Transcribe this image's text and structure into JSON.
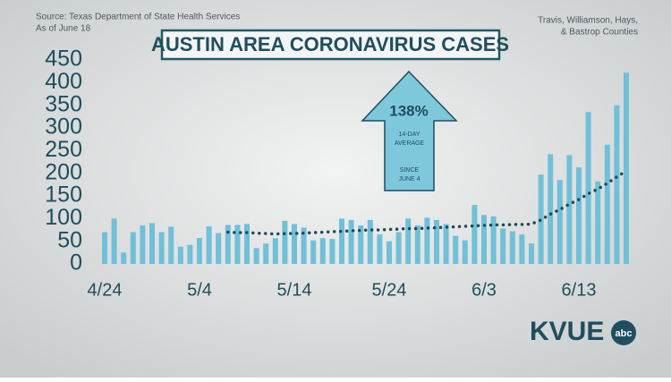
{
  "chart_data": {
    "type": "bar",
    "title": "AUSTIN AREA CORONAVIRUS CASES",
    "source": "Source: Texas Department of State Health Services",
    "date_note": "As of June 18",
    "region": "Travis, Williamson, Hays,",
    "region_2": "& Bastrop Counties",
    "annotation_value": "138%",
    "annotation_metric": "14-DAY AVERAGE",
    "annotation_since": "SINCE JUNE 4",
    "logo": "KVUE",
    "logo_badge": "abc",
    "categories": [
      "4/24",
      null,
      null,
      null,
      null,
      null,
      null,
      null,
      null,
      null,
      "5/4",
      null,
      null,
      null,
      null,
      null,
      null,
      null,
      null,
      null,
      "5/14",
      null,
      null,
      null,
      null,
      null,
      null,
      null,
      null,
      null,
      "5/24",
      null,
      null,
      null,
      null,
      null,
      null,
      null,
      null,
      null,
      "6/3",
      null,
      null,
      null,
      null,
      null,
      null,
      null,
      null,
      null,
      "6/13",
      null,
      null,
      null,
      null,
      null
    ],
    "series": [
      {
        "type": "bar",
        "color": "#6fc0d8",
        "values": [
          70,
          100,
          25,
          70,
          85,
          90,
          70,
          82,
          38,
          42,
          57,
          83,
          68,
          86,
          86,
          88,
          35,
          45,
          57,
          95,
          88,
          80,
          52,
          57,
          55,
          100,
          97,
          85,
          97,
          65,
          50,
          70,
          100,
          85,
          102,
          97,
          88,
          62,
          52,
          130,
          108,
          105,
          78,
          72,
          65,
          45,
          197,
          242,
          185,
          240,
          213,
          335,
          182,
          263,
          350,
          422
        ]
      },
      {
        "type": "line",
        "color": "#1d4a5a",
        "values": [
          null,
          null,
          null,
          null,
          null,
          null,
          null,
          null,
          null,
          null,
          null,
          null,
          null,
          70,
          69,
          69,
          68,
          67,
          66,
          67,
          67,
          68,
          69,
          70,
          71,
          72,
          73,
          74,
          75,
          75,
          76,
          77,
          78,
          78,
          79,
          80,
          81,
          82,
          83,
          84,
          85,
          86,
          86,
          87,
          87,
          88,
          97,
          110,
          120,
          132,
          142,
          155,
          165,
          178,
          192,
          205
        ]
      }
    ],
    "ylim": [
      0,
      450
    ],
    "yticks": [
      0,
      50,
      100,
      150,
      200,
      250,
      300,
      350,
      400,
      450
    ],
    "grid": false
  }
}
